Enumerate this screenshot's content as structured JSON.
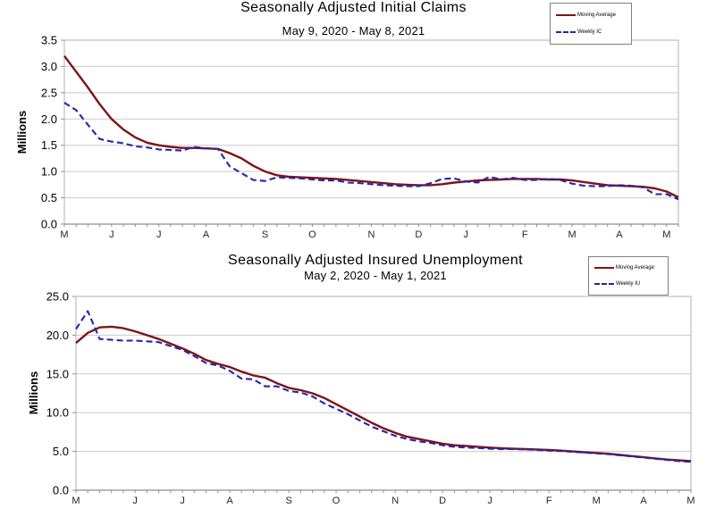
{
  "window": {
    "background": "#ffffff"
  },
  "colors": {
    "moving_average": "#7e1416",
    "weekly": "#2424ac",
    "gridline": "#c9c9c9",
    "plot_border": "#b0b0b0",
    "axis": "#8e8e8e",
    "tick_label": "#262626",
    "text": "#000000"
  },
  "chart_data": [
    {
      "type": "line",
      "title": "Seasonally  Adjusted  Initial  Claims",
      "subtitle": "May 9, 2020 - May 8, 2021",
      "ylabel": "Millions",
      "ylim": [
        0.0,
        3.5
      ],
      "y_tick_step": 0.5,
      "y_tick_decimals": 1,
      "grid": true,
      "legend_position": "top-right",
      "x_tick_labels": [
        "M",
        "J",
        "J",
        "A",
        "S",
        "O",
        "N",
        "D",
        "J",
        "F",
        "M",
        "A",
        "M"
      ],
      "x_tick_positions_weeks": [
        0,
        4,
        8,
        12,
        17,
        21,
        26,
        30,
        34,
        39,
        43,
        47,
        51
      ],
      "weeks_total": 53,
      "series": [
        {
          "name": "Moving Average",
          "style": "solid",
          "color_key": "moving_average",
          "values": [
            3.2,
            2.9,
            2.6,
            2.28,
            2.0,
            1.8,
            1.65,
            1.55,
            1.5,
            1.47,
            1.45,
            1.45,
            1.44,
            1.43,
            1.35,
            1.25,
            1.11,
            1.0,
            0.93,
            0.9,
            0.89,
            0.88,
            0.87,
            0.86,
            0.84,
            0.82,
            0.8,
            0.78,
            0.76,
            0.75,
            0.74,
            0.74,
            0.76,
            0.79,
            0.81,
            0.83,
            0.84,
            0.85,
            0.86,
            0.86,
            0.86,
            0.85,
            0.85,
            0.83,
            0.8,
            0.77,
            0.74,
            0.73,
            0.72,
            0.71,
            0.68,
            0.62,
            0.51
          ]
        },
        {
          "name": "Weekly IC",
          "style": "dashed",
          "color_key": "weekly",
          "values": [
            2.31,
            2.17,
            1.89,
            1.62,
            1.57,
            1.54,
            1.48,
            1.46,
            1.42,
            1.41,
            1.4,
            1.47,
            1.44,
            1.43,
            1.1,
            0.97,
            0.84,
            0.82,
            0.89,
            0.88,
            0.87,
            0.85,
            0.83,
            0.83,
            0.79,
            0.78,
            0.76,
            0.74,
            0.73,
            0.72,
            0.72,
            0.78,
            0.86,
            0.87,
            0.81,
            0.79,
            0.9,
            0.85,
            0.88,
            0.84,
            0.84,
            0.86,
            0.84,
            0.77,
            0.73,
            0.72,
            0.72,
            0.74,
            0.73,
            0.7,
            0.57,
            0.57,
            0.47
          ]
        }
      ]
    },
    {
      "type": "line",
      "title": "Seasonally  Adjusted  Insured  Unemployment",
      "subtitle": "May 2, 2020 - May 1, 2021",
      "ylabel": "Millions",
      "ylim": [
        0.0,
        25.0
      ],
      "y_tick_step": 5.0,
      "y_tick_decimals": 1,
      "grid": true,
      "legend_position": "top-right",
      "x_tick_labels": [
        "M",
        "J",
        "J",
        "A",
        "S",
        "O",
        "N",
        "D",
        "J",
        "F",
        "M",
        "A",
        "M"
      ],
      "x_tick_positions_weeks": [
        0,
        5,
        9,
        13,
        18,
        22,
        27,
        31,
        35,
        40,
        44,
        48,
        52
      ],
      "weeks_total": 53,
      "series": [
        {
          "name": "Moving Average",
          "style": "solid",
          "color_key": "moving_average",
          "values": [
            19.0,
            20.3,
            21.0,
            21.1,
            20.9,
            20.5,
            20.0,
            19.5,
            18.9,
            18.3,
            17.6,
            16.8,
            16.3,
            15.9,
            15.3,
            14.8,
            14.5,
            13.8,
            13.2,
            12.9,
            12.5,
            11.9,
            11.1,
            10.3,
            9.5,
            8.7,
            8.0,
            7.4,
            6.9,
            6.6,
            6.3,
            6.0,
            5.8,
            5.7,
            5.6,
            5.5,
            5.4,
            5.35,
            5.3,
            5.25,
            5.2,
            5.1,
            5.0,
            4.9,
            4.8,
            4.7,
            4.55,
            4.4,
            4.25,
            4.1,
            3.95,
            3.85,
            3.75
          ]
        },
        {
          "name": "Weekly IU",
          "style": "dashed",
          "color_key": "weekly",
          "values": [
            20.8,
            23.1,
            19.5,
            19.4,
            19.3,
            19.3,
            19.2,
            19.1,
            18.6,
            18.1,
            17.3,
            16.4,
            16.1,
            15.4,
            14.4,
            14.3,
            13.4,
            13.4,
            12.8,
            12.6,
            12.1,
            11.2,
            10.5,
            9.8,
            9.0,
            8.2,
            7.6,
            7.0,
            6.6,
            6.3,
            6.1,
            5.8,
            5.6,
            5.5,
            5.45,
            5.35,
            5.3,
            5.3,
            5.25,
            5.2,
            5.1,
            5.05,
            4.95,
            4.85,
            4.75,
            4.65,
            4.5,
            4.35,
            4.2,
            4.05,
            3.9,
            3.75,
            3.65
          ]
        }
      ]
    }
  ]
}
